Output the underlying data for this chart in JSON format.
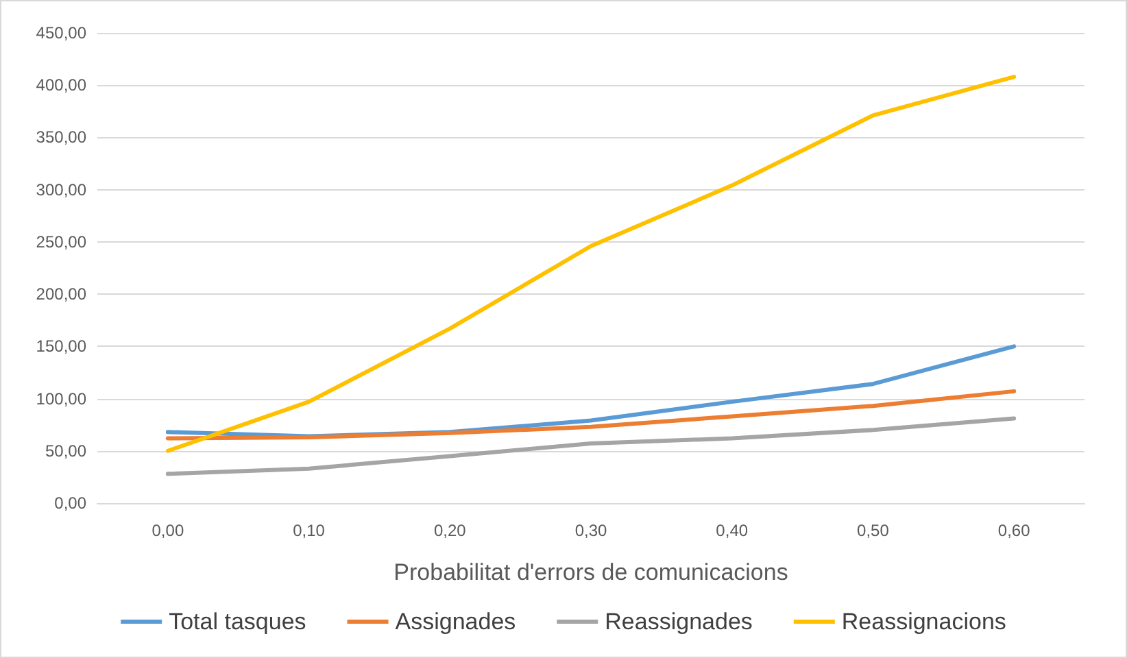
{
  "chart_data": {
    "type": "line",
    "xlabel": "Probabilitat d'errors de comunicacions",
    "categories": [
      "0,00",
      "0,10",
      "0,20",
      "0,30",
      "0,40",
      "0,50",
      "0,60"
    ],
    "series": [
      {
        "name": "Total tasques",
        "color": "#5b9bd5",
        "values": [
          68,
          64,
          68,
          79,
          97,
          114,
          150
        ]
      },
      {
        "name": "Assignades",
        "color": "#ed7d31",
        "values": [
          62,
          63,
          67,
          73,
          83,
          93,
          107
        ]
      },
      {
        "name": "Reassignades",
        "color": "#a5a5a5",
        "values": [
          28,
          33,
          45,
          57,
          62,
          70,
          81
        ]
      },
      {
        "name": "Reassignacions",
        "color": "#ffc000",
        "values": [
          50,
          97,
          167,
          246,
          304,
          371,
          408
        ]
      }
    ],
    "ylim": [
      0,
      450
    ],
    "yticks": [
      {
        "value": 0,
        "label": "0,00"
      },
      {
        "value": 50,
        "label": "50,00"
      },
      {
        "value": 100,
        "label": "100,00"
      },
      {
        "value": 150,
        "label": "150,00"
      },
      {
        "value": 200,
        "label": "200,00"
      },
      {
        "value": 250,
        "label": "250,00"
      },
      {
        "value": 300,
        "label": "300,00"
      },
      {
        "value": 350,
        "label": "350,00"
      },
      {
        "value": 400,
        "label": "400,00"
      },
      {
        "value": 450,
        "label": "450,00"
      }
    ],
    "grid": "y",
    "legend": "bottom",
    "marker": "none",
    "line_style": "solid"
  }
}
